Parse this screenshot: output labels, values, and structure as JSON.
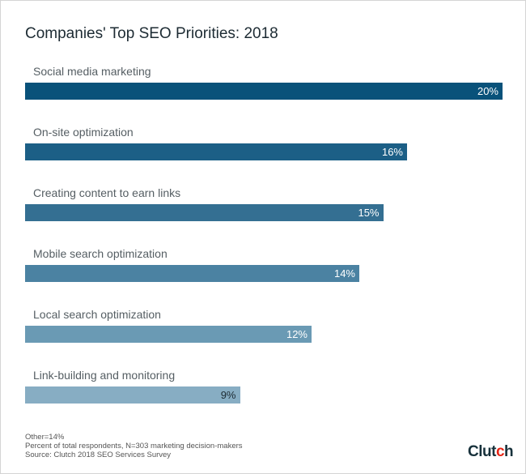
{
  "chart_data": {
    "type": "bar",
    "orientation": "horizontal",
    "title": "Companies' Top SEO Priorities: 2018",
    "categories": [
      "Social media marketing",
      "On-site optimization",
      "Creating content to earn links",
      "Mobile search optimization",
      "Local search optimization",
      "Link-building and monitoring"
    ],
    "values": [
      20,
      16,
      15,
      14,
      12,
      9
    ],
    "value_labels": [
      "20%",
      "16%",
      "15%",
      "14%",
      "12%",
      "9%"
    ],
    "colors": [
      "#09527a",
      "#1c5f86",
      "#346f92",
      "#4b82a2",
      "#6a9ab4",
      "#87adc3"
    ],
    "label_colors": [
      "#ffffff",
      "#ffffff",
      "#ffffff",
      "#ffffff",
      "#ffffff",
      "#1d2b33"
    ],
    "xlim": [
      0,
      20
    ],
    "xlabel": "",
    "ylabel": "",
    "grid": false
  },
  "footnotes": [
    "Other=14%",
    "Percent of total respondents, N=303 marketing decision-makers",
    "Source: Clutch 2018 SEO Services Survey"
  ],
  "logo": "Clutch"
}
